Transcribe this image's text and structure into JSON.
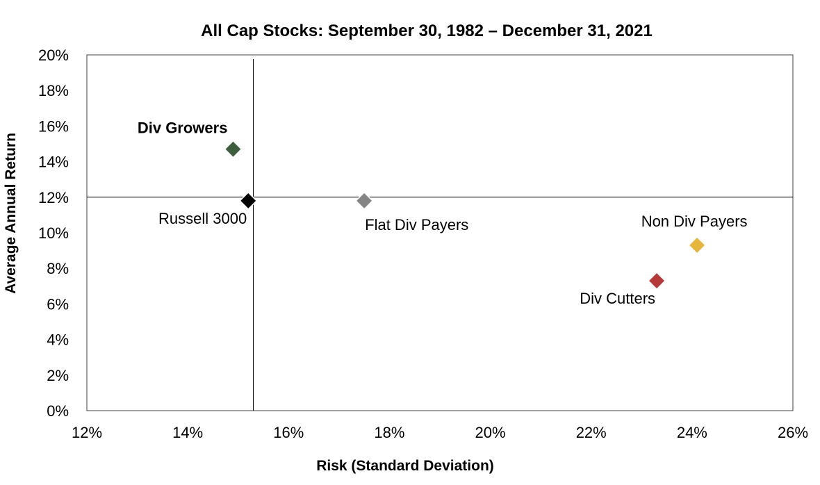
{
  "chart_data": {
    "type": "scatter",
    "title": "All Cap Stocks: September 30, 1982 – December 31, 2021",
    "xlabel": "Risk (Standard Deviation)",
    "ylabel": "Average Annual Return",
    "xlim": [
      12,
      26
    ],
    "ylim": [
      0,
      20
    ],
    "x_ticks": [
      12,
      14,
      16,
      18,
      20,
      22,
      24,
      26
    ],
    "y_ticks": [
      0,
      2,
      4,
      6,
      8,
      10,
      12,
      14,
      16,
      18,
      20
    ],
    "tick_suffix": "%",
    "x_tick_labels": [
      "12%",
      "14%",
      "16%",
      "18%",
      "20%",
      "22%",
      "24%",
      "26%"
    ],
    "y_tick_labels": [
      "0%",
      "2%",
      "4%",
      "6%",
      "8%",
      "10%",
      "12%",
      "14%",
      "16%",
      "18%",
      "20%"
    ],
    "reference_lines": {
      "x": 15.3,
      "y": 12
    },
    "grid": false,
    "marker": "diamond",
    "points": [
      {
        "name": "Div Growers",
        "x": 14.9,
        "y": 14.7,
        "color": "#3e5e3d",
        "label_pos": "upper-left",
        "bold": true
      },
      {
        "name": "Russell 3000",
        "x": 15.2,
        "y": 11.8,
        "color": "#000000",
        "label_pos": "lower-left",
        "bold": false
      },
      {
        "name": "Flat Div Payers",
        "x": 17.5,
        "y": 11.8,
        "color": "#858585",
        "label_pos": "lower-right",
        "bold": false
      },
      {
        "name": "Non Div Payers",
        "x": 24.1,
        "y": 9.3,
        "color": "#e6b53e",
        "label_pos": "upper",
        "bold": false
      },
      {
        "name": "Div Cutters",
        "x": 23.3,
        "y": 7.3,
        "color": "#b63a3a",
        "label_pos": "lower-left",
        "bold": false
      }
    ]
  }
}
